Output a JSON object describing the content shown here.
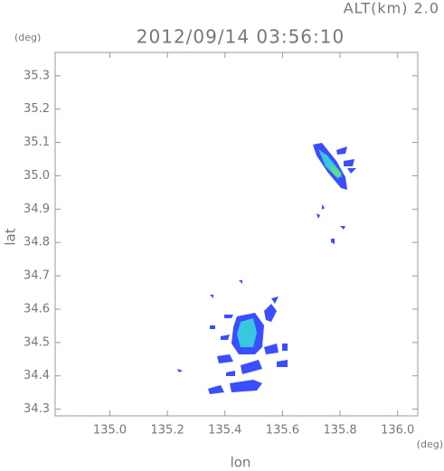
{
  "chart_data": {
    "type": "radar-map",
    "title": "2012/09/14 03:56:10",
    "altitude_label": "ALT(km) 2.0",
    "y_unit": "(deg)",
    "x_unit": "(deg)",
    "xlabel": "lon",
    "ylabel": "lat",
    "xlim": [
      134.81,
      136.07
    ],
    "ylim": [
      34.28,
      35.37
    ],
    "xticks": [
      {
        "value": 135.0,
        "label": "135.0"
      },
      135.2,
      135.4,
      135.6,
      135.8,
      {
        "value": 136.0,
        "label": "136.0"
      }
    ],
    "yticks": [
      34.3,
      34.4,
      34.5,
      34.6,
      34.7,
      34.8,
      34.9,
      {
        "value": 35.0,
        "label": "35.0"
      },
      35.1,
      35.2,
      35.3
    ]
  }
}
